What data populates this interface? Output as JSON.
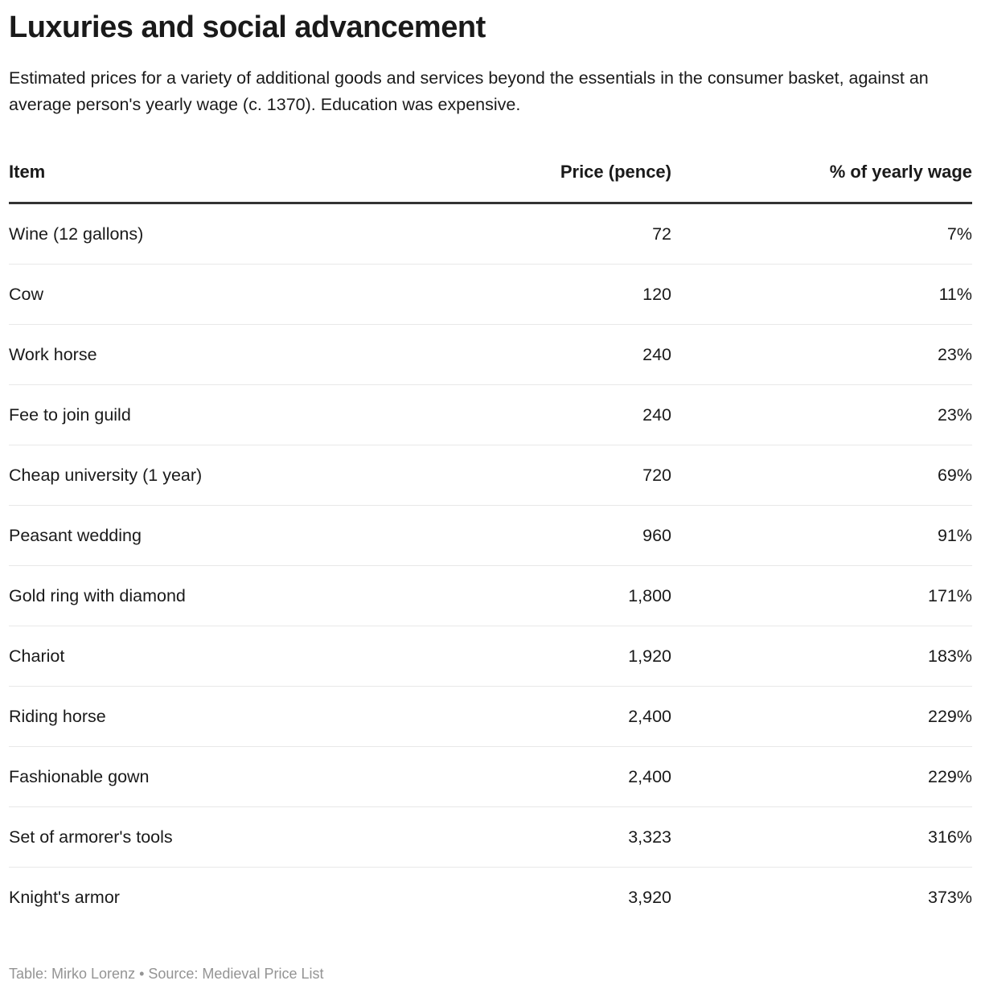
{
  "header": {
    "title": "Luxuries and social advancement",
    "subtitle": "Estimated prices for a variety of additional goods and services beyond the essentials in the consumer basket, against an average person's yearly wage (c. 1370). Education was expensive."
  },
  "chart_data": {
    "type": "table",
    "title": "Luxuries and social advancement",
    "columns": [
      "Item",
      "Price (pence)",
      "% of yearly wage"
    ],
    "rows": [
      {
        "item": "Wine (12 gallons)",
        "price": "72",
        "pct": "7%"
      },
      {
        "item": "Cow",
        "price": "120",
        "pct": "11%"
      },
      {
        "item": "Work horse",
        "price": "240",
        "pct": "23%"
      },
      {
        "item": "Fee to join guild",
        "price": "240",
        "pct": "23%"
      },
      {
        "item": "Cheap university (1 year)",
        "price": "720",
        "pct": "69%"
      },
      {
        "item": "Peasant wedding",
        "price": "960",
        "pct": "91%"
      },
      {
        "item": "Gold ring with diamond",
        "price": "1,800",
        "pct": "171%"
      },
      {
        "item": "Chariot",
        "price": "1,920",
        "pct": "183%"
      },
      {
        "item": "Riding horse",
        "price": "2,400",
        "pct": "229%"
      },
      {
        "item": "Fashionable gown",
        "price": "2,400",
        "pct": "229%"
      },
      {
        "item": "Set of armorer's tools",
        "price": "3,323",
        "pct": "316%"
      },
      {
        "item": "Knight's armor",
        "price": "3,920",
        "pct": "373%"
      }
    ]
  },
  "footer": {
    "text": "Table: Mirko Lorenz • Source: Medieval Price List"
  },
  "colors": {
    "text": "#1a1a1a",
    "header_border": "#333333",
    "row_separator": "#e8e8e8",
    "footer_text": "#949494",
    "background": "#ffffff"
  }
}
